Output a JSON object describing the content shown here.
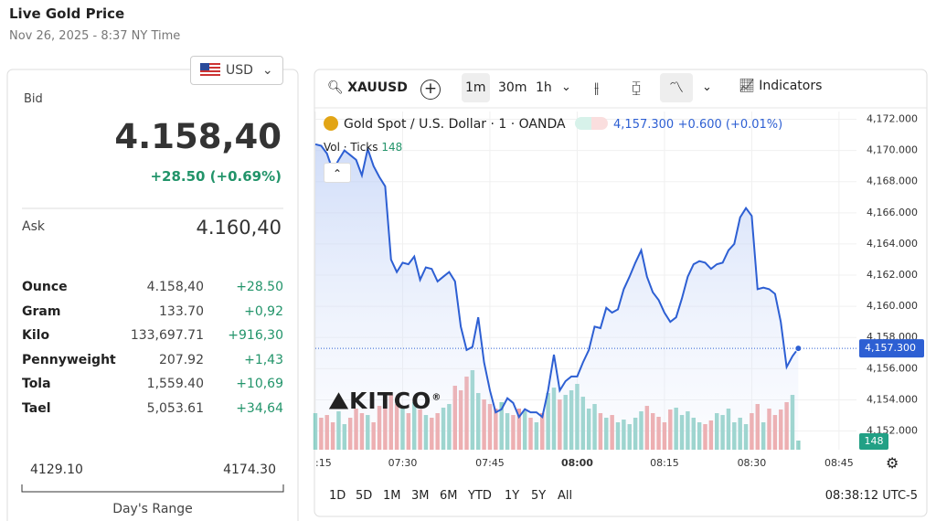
{
  "header": {
    "title": "Live Gold Price",
    "subtitle": "Nov 26, 2025 - 8:37 NY Time",
    "currency": "USD"
  },
  "quote": {
    "bid_label": "Bid",
    "bid": "4.158,40",
    "change": "+28.50 (+0.69%)",
    "ask_label": "Ask",
    "ask": "4.160,40"
  },
  "table": {
    "rows": [
      [
        "Ounce",
        "4.158,40",
        "+28.50"
      ],
      [
        "Gram",
        "133.70",
        "+0,92"
      ],
      [
        "Kilo",
        "133,697.71",
        "+916,30"
      ],
      [
        "Pennyweight",
        "207.92",
        "+1,43"
      ],
      [
        "Tola",
        "1,559.40",
        "+10,69"
      ],
      [
        "Tael",
        "5,053.61",
        "+34,64"
      ]
    ]
  },
  "range": {
    "low": "4129.10",
    "high": "4174.30",
    "label": "Day's Range"
  },
  "toolbar": {
    "symbol": "XAUUSD",
    "intervals": [
      "1m",
      "30m",
      "1h"
    ],
    "indicators": "Indicators"
  },
  "footer": {
    "ranges": [
      "1D",
      "5D",
      "1M",
      "3M",
      "6M",
      "YTD",
      "1Y",
      "5Y",
      "All"
    ],
    "time": "08:38:12 UTC-5"
  },
  "logo": "KITCO",
  "chart_data": {
    "type": "area",
    "price_label": "4,157.300",
    "change_label": "+0.600 (+0.01%)",
    "x": [
      "07:15",
      "07:16",
      "07:17",
      "07:18",
      "07:19",
      "07:20",
      "07:21",
      "07:22",
      "07:23",
      "07:24",
      "07:25",
      "07:26",
      "07:27",
      "07:28",
      "07:29",
      "07:30",
      "07:31",
      "07:32",
      "07:33",
      "07:34",
      "07:35",
      "07:36",
      "07:37",
      "07:38",
      "07:39",
      "07:40",
      "07:41",
      "07:42",
      "07:43",
      "07:44",
      "07:45",
      "07:46",
      "07:47",
      "07:48",
      "07:49",
      "07:50",
      "07:51",
      "07:52",
      "07:53",
      "07:54",
      "07:55",
      "07:56",
      "07:57",
      "07:58",
      "07:59",
      "08:00",
      "08:01",
      "08:02",
      "08:03",
      "08:04",
      "08:05",
      "08:06",
      "08:07",
      "08:08",
      "08:09",
      "08:10",
      "08:11",
      "08:12",
      "08:13",
      "08:14",
      "08:15",
      "08:16",
      "08:17",
      "08:18",
      "08:19",
      "08:20",
      "08:21",
      "08:22",
      "08:23",
      "08:24",
      "08:25",
      "08:26",
      "08:27",
      "08:28",
      "08:29",
      "08:30",
      "08:31",
      "08:32",
      "08:33",
      "08:34",
      "08:35",
      "08:36",
      "08:37",
      "08:38"
    ],
    "series": [
      {
        "name": "Gold Spot / U.S. Dollar · 1 · OANDA",
        "color": "#2d5fd3",
        "last_value_label": "4,157.300",
        "values": [
          4170.4,
          4170.3,
          4169.8,
          4168.7,
          4169.4,
          4170.0,
          4169.7,
          4169.4,
          4168.4,
          4170.1,
          4169.0,
          4168.3,
          4167.7,
          4163.0,
          4162.2,
          4162.8,
          4162.7,
          4163.2,
          4161.7,
          4162.5,
          4162.4,
          4161.6,
          4161.9,
          4162.2,
          4161.6,
          4158.7,
          4157.2,
          4157.4,
          4159.3,
          4156.4,
          4154.6,
          4153.2,
          4153.4,
          4154.1,
          4153.8,
          4152.9,
          4153.4,
          4153.2,
          4153.2,
          4152.9,
          4154.6,
          4156.9,
          4154.6,
          4155.2,
          4155.5,
          4155.5,
          4156.4,
          4157.2,
          4158.7,
          4158.6,
          4159.9,
          4159.6,
          4159.8,
          4161.1,
          4161.9,
          4162.8,
          4163.6,
          4161.9,
          4160.9,
          4160.4,
          4159.6,
          4159.0,
          4159.3,
          4160.5,
          4161.9,
          4162.7,
          4162.9,
          4162.8,
          4162.4,
          4162.7,
          4162.8,
          4163.6,
          4164.0,
          4165.7,
          4166.3,
          4165.8,
          4161.1,
          4161.2,
          4161.1,
          4160.8,
          4159.0,
          4156.1,
          4156.8,
          4157.3
        ]
      },
      {
        "name": "Vol · Ticks",
        "up_color": "#8fd0c6",
        "down_color": "#eea3a3",
        "values": [
          592,
          518,
          562,
          444,
          622,
          414,
          518,
          666,
          592,
          562,
          444,
          710,
          814,
          888,
          740,
          666,
          592,
          770,
          651,
          562,
          518,
          592,
          681,
          740,
          1036,
          962,
          1184,
          1288,
          918,
          814,
          740,
          666,
          770,
          592,
          562,
          666,
          622,
          518,
          444,
          592,
          918,
          1006,
          814,
          888,
          962,
          1066,
          858,
          666,
          740,
          592,
          518,
          562,
          444,
          488,
          414,
          518,
          622,
          710,
          592,
          533,
          444,
          651,
          681,
          562,
          622,
          518,
          444,
          414,
          474,
          592,
          562,
          666,
          444,
          518,
          414,
          592,
          740,
          444,
          666,
          562,
          651,
          770,
          888,
          148
        ]
      }
    ],
    "xlim": [
      "07:15",
      "08:48"
    ],
    "xticks": [
      {
        "value": "07:15",
        "label": ":15"
      },
      "07:30",
      "07:45",
      "08:00",
      "08:15",
      "08:30",
      "08:45"
    ],
    "ylim": [
      4150.8,
      4172.5
    ],
    "yticks": [
      {
        "value": 4152,
        "label": "4,152.000"
      },
      {
        "value": 4154,
        "label": "4,154.000"
      },
      {
        "value": 4156,
        "label": "4,156.000"
      },
      {
        "value": 4158,
        "label": "4,158.000"
      },
      {
        "value": 4160,
        "label": "4,160.000"
      },
      {
        "value": 4162,
        "label": "4,162.000"
      },
      {
        "value": 4164,
        "label": "4,164.000"
      },
      {
        "value": 4166,
        "label": "4,166.000"
      },
      {
        "value": 4168,
        "label": "4,168.000"
      },
      {
        "value": 4170,
        "label": "4,170.000"
      },
      {
        "value": 4172,
        "label": "4,172.000"
      }
    ]
  }
}
